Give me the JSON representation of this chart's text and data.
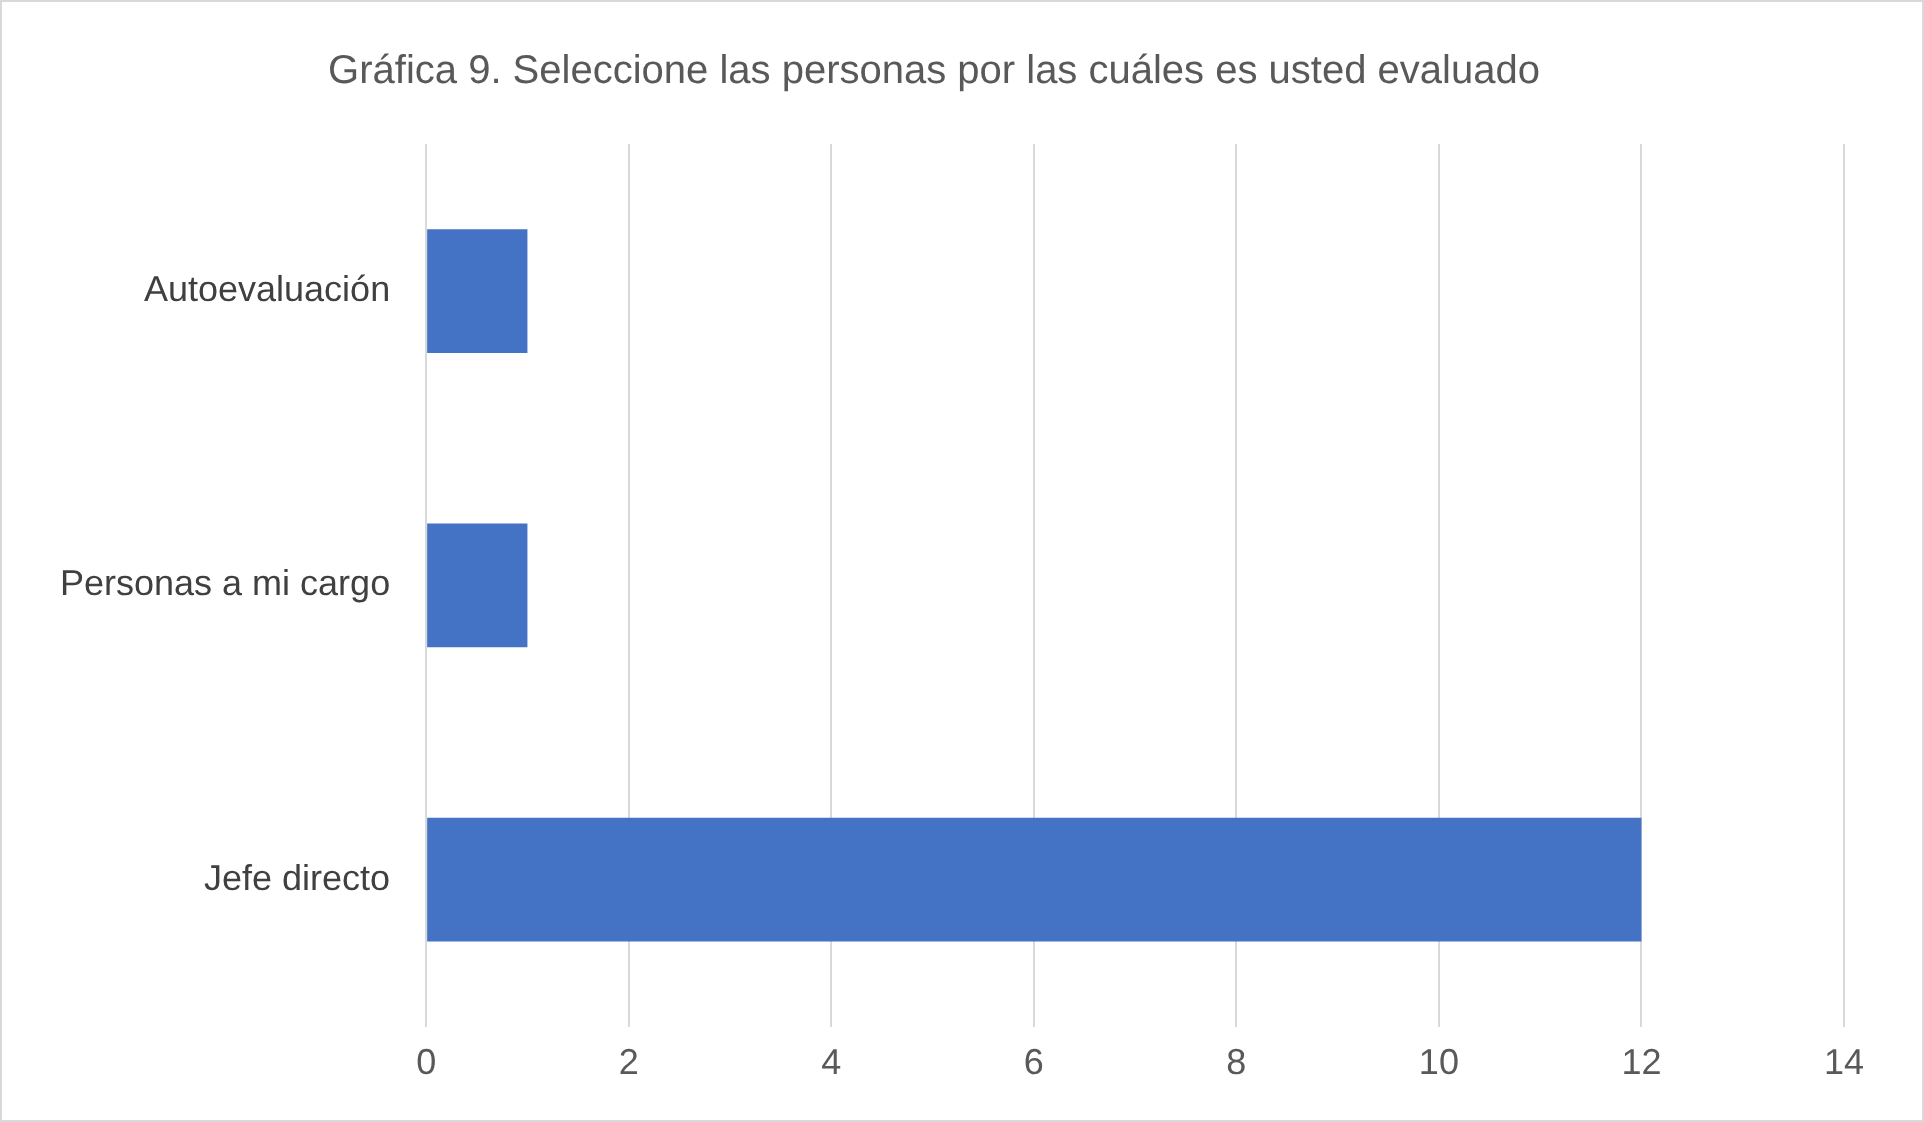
{
  "chart_data": {
    "type": "bar",
    "orientation": "horizontal",
    "title": "Gráfica 9. Seleccione las personas por las cuáles es usted evaluado",
    "categories": [
      "Autoevaluación",
      "Personas a mi cargo",
      "Jefe directo"
    ],
    "values": [
      1,
      1,
      12
    ],
    "color": "#4472c4",
    "xlim": [
      0,
      14
    ],
    "xticks": [
      0,
      2,
      4,
      6,
      8,
      10,
      12,
      14
    ],
    "grid": "x"
  }
}
